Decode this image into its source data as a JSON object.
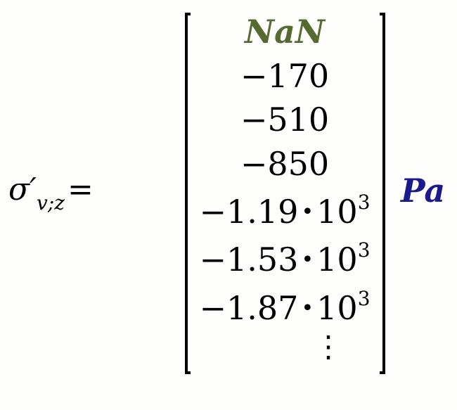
{
  "lhs": {
    "symbol": "σ′",
    "subscript": "v;z",
    "equals": "="
  },
  "matrix": {
    "first": "NaN",
    "values": [
      {
        "mantissa": "−170",
        "exponent": ""
      },
      {
        "mantissa": "−510",
        "exponent": ""
      },
      {
        "mantissa": "−850",
        "exponent": ""
      },
      {
        "mantissa": "−1.19",
        "exponent": "3"
      },
      {
        "mantissa": "−1.53",
        "exponent": "3"
      },
      {
        "mantissa": "−1.87",
        "exponent": "3"
      }
    ],
    "more": "⋮",
    "times": "•",
    "base": "10"
  },
  "unit": "Pa",
  "colors": {
    "nan": "#556b2f",
    "unit": "#1a1a8c"
  }
}
